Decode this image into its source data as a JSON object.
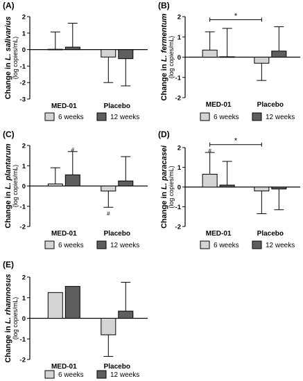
{
  "legend_labels": [
    "6 weeks",
    "12 weeks"
  ],
  "colors": {
    "week6": "#d4d4d4",
    "week12": "#5e5e5e",
    "axis": "#000000"
  },
  "chart_data": [
    {
      "type": "bar",
      "panel": "(A)",
      "ylabel_species": "L. salivarius",
      "ylabel_units": "(log copies/mL)",
      "categories": [
        "MED-01",
        "Placebo"
      ],
      "ylim": [
        -3,
        2
      ],
      "yticks": [
        -3,
        -2,
        -1,
        0,
        1,
        2
      ],
      "series": [
        {
          "name": "6 weeks",
          "values": [
            0.02,
            -0.45
          ],
          "err": [
            1.05,
            1.55
          ],
          "err_dir": [
            "up",
            "down"
          ]
        },
        {
          "name": "12 weeks",
          "values": [
            0.15,
            -0.55
          ],
          "err": [
            1.45,
            1.65
          ],
          "err_dir": [
            "up",
            "down"
          ]
        }
      ],
      "annotations": []
    },
    {
      "type": "bar",
      "panel": "(B)",
      "ylabel_species": "L. fermentum",
      "ylabel_units": "(log copies/mL)",
      "categories": [
        "MED-01",
        "Placebo"
      ],
      "ylim": [
        -2,
        2
      ],
      "yticks": [
        -2,
        -1,
        0,
        1,
        2
      ],
      "series": [
        {
          "name": "6 weeks",
          "values": [
            0.35,
            -0.3
          ],
          "err": [
            0.9,
            0.85
          ],
          "err_dir": [
            "up",
            "down"
          ]
        },
        {
          "name": "12 weeks",
          "values": [
            0.02,
            0.3
          ],
          "err": [
            1.4,
            1.2
          ],
          "err_dir": [
            "up",
            "up"
          ]
        }
      ],
      "annotations": [
        {
          "text": "*",
          "kind": "bracket",
          "from": 0,
          "to": 1,
          "y": 1.85
        }
      ]
    },
    {
      "type": "bar",
      "panel": "(C)",
      "ylabel_species": "L. plantarum",
      "ylabel_units": "(log copies/mL)",
      "categories": [
        "MED-01",
        "Placebo"
      ],
      "ylim": [
        -2,
        2
      ],
      "yticks": [
        -2,
        -1,
        0,
        1,
        2
      ],
      "series": [
        {
          "name": "6 weeks",
          "values": [
            0.1,
            -0.25
          ],
          "err": [
            0.8,
            0.8
          ],
          "err_dir": [
            "up",
            "down"
          ]
        },
        {
          "name": "12 weeks",
          "values": [
            0.55,
            0.25
          ],
          "err": [
            1.15,
            1.2
          ],
          "err_dir": [
            "up",
            "up"
          ]
        }
      ],
      "annotations": [
        {
          "text": "#",
          "kind": "mark",
          "cat": 0,
          "series": 1,
          "y": 1.8
        },
        {
          "text": "#",
          "kind": "mark",
          "cat": 1,
          "series": 0,
          "y": -1.35
        }
      ]
    },
    {
      "type": "bar",
      "panel": "(D)",
      "ylabel_species": "L. paracasei",
      "ylabel_units": "(log copies/mL)",
      "categories": [
        "MED-01",
        "Placebo"
      ],
      "ylim": [
        -2,
        2
      ],
      "yticks": [
        -2,
        -1,
        0,
        1,
        2
      ],
      "series": [
        {
          "name": "6 weeks",
          "values": [
            0.65,
            -0.2
          ],
          "err": [
            1.1,
            1.15
          ],
          "err_dir": [
            "up",
            "down"
          ]
        },
        {
          "name": "12 weeks",
          "values": [
            0.1,
            -0.1
          ],
          "err": [
            1.2,
            1.05
          ],
          "err_dir": [
            "up",
            "down"
          ]
        }
      ],
      "annotations": [
        {
          "text": "*",
          "kind": "bracket",
          "from": 0,
          "to": 1,
          "y": 2.15
        },
        {
          "text": "#",
          "kind": "mark",
          "cat": 0,
          "series": 0,
          "y": 1.85
        }
      ]
    },
    {
      "type": "bar",
      "panel": "(E)",
      "ylabel_species": "L. rhamnosus",
      "ylabel_units": "(log copies/mL)",
      "categories": [
        "MED-01",
        "Placebo"
      ],
      "ylim": [
        -2,
        2
      ],
      "yticks": [
        -2,
        -1,
        0,
        1,
        2
      ],
      "series": [
        {
          "name": "6 weeks",
          "values": [
            1.25,
            -0.8
          ],
          "err": [
            0,
            1.05
          ],
          "err_dir": [
            "up",
            "down"
          ]
        },
        {
          "name": "12 weeks",
          "values": [
            1.55,
            0.35
          ],
          "err": [
            0,
            1.4
          ],
          "err_dir": [
            "up",
            "up"
          ]
        }
      ],
      "annotations": []
    }
  ]
}
